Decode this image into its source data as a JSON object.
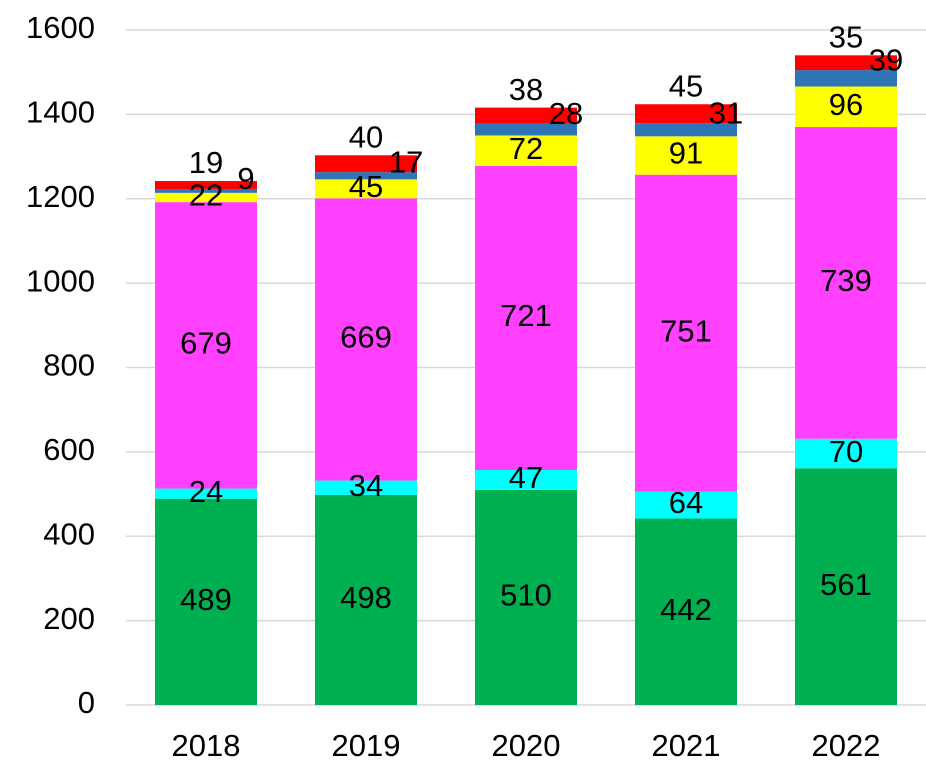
{
  "chart_data": {
    "type": "stacked_bar",
    "categories": [
      "2018",
      "2019",
      "2020",
      "2021",
      "2022"
    ],
    "series": [
      {
        "color": "#00b050",
        "values": [
          489,
          498,
          510,
          442,
          561
        ]
      },
      {
        "color": "#00ffff",
        "values": [
          24,
          34,
          47,
          64,
          70
        ]
      },
      {
        "color": "#ff40ff",
        "values": [
          679,
          669,
          721,
          751,
          739
        ]
      },
      {
        "color": "#ffff00",
        "values": [
          22,
          45,
          72,
          91,
          96
        ]
      },
      {
        "color": "#2e75b6",
        "values": [
          9,
          17,
          28,
          31,
          39
        ]
      },
      {
        "color": "#ff0000",
        "values": [
          19,
          40,
          38,
          45,
          35
        ]
      }
    ],
    "ylim": [
      0,
      1600
    ],
    "yticks": [
      0,
      200,
      400,
      600,
      800,
      1000,
      1200,
      1400,
      1600
    ],
    "grid": true
  }
}
